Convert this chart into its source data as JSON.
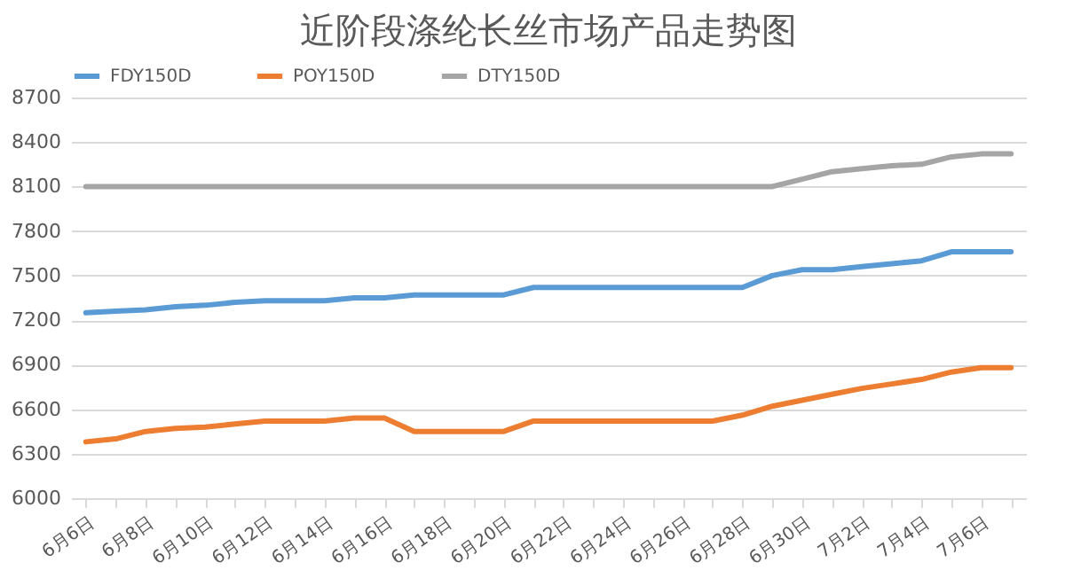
{
  "chart_data": {
    "type": "line",
    "title": "近阶段涤纶长丝市场产品走势图",
    "categories": [
      "6月6日",
      null,
      "6月8日",
      null,
      "6月10日",
      null,
      "6月12日",
      null,
      "6月14日",
      null,
      "6月16日",
      null,
      "6月18日",
      null,
      "6月20日",
      null,
      "6月22日",
      null,
      "6月24日",
      null,
      "6月26日",
      null,
      "6月28日",
      null,
      "6月30日",
      null,
      "7月2日",
      null,
      "7月4日",
      null,
      "7月6日",
      null
    ],
    "series": [
      {
        "name": "FDY150D",
        "color": "#5b9bd5",
        "values": [
          7250,
          7260,
          7270,
          7290,
          7300,
          7320,
          7330,
          7330,
          7330,
          7350,
          7350,
          7370,
          7370,
          7370,
          7370,
          7420,
          7420,
          7420,
          7420,
          7420,
          7420,
          7420,
          7420,
          7500,
          7540,
          7540,
          7560,
          7580,
          7600,
          7660,
          7660,
          7660
        ]
      },
      {
        "name": "POY150D",
        "color": "#ed7d31",
        "values": [
          6380,
          6400,
          6450,
          6470,
          6480,
          6500,
          6520,
          6520,
          6520,
          6540,
          6540,
          6450,
          6450,
          6450,
          6450,
          6520,
          6520,
          6520,
          6520,
          6520,
          6520,
          6520,
          6560,
          6620,
          6660,
          6700,
          6740,
          6770,
          6800,
          6850,
          6880,
          6880
        ]
      },
      {
        "name": "DTY150D",
        "color": "#a5a5a5",
        "values": [
          8100,
          8100,
          8100,
          8100,
          8100,
          8100,
          8100,
          8100,
          8100,
          8100,
          8100,
          8100,
          8100,
          8100,
          8100,
          8100,
          8100,
          8100,
          8100,
          8100,
          8100,
          8100,
          8100,
          8100,
          8150,
          8200,
          8220,
          8240,
          8250,
          8300,
          8320,
          8320
        ]
      }
    ],
    "ylim": [
      6000,
      8700
    ],
    "yticks": [
      6000,
      6300,
      6600,
      6900,
      7200,
      7500,
      7800,
      8100,
      8400,
      8700
    ],
    "grid": "y",
    "legend": "top",
    "marker": "none",
    "line_style": "solid"
  }
}
